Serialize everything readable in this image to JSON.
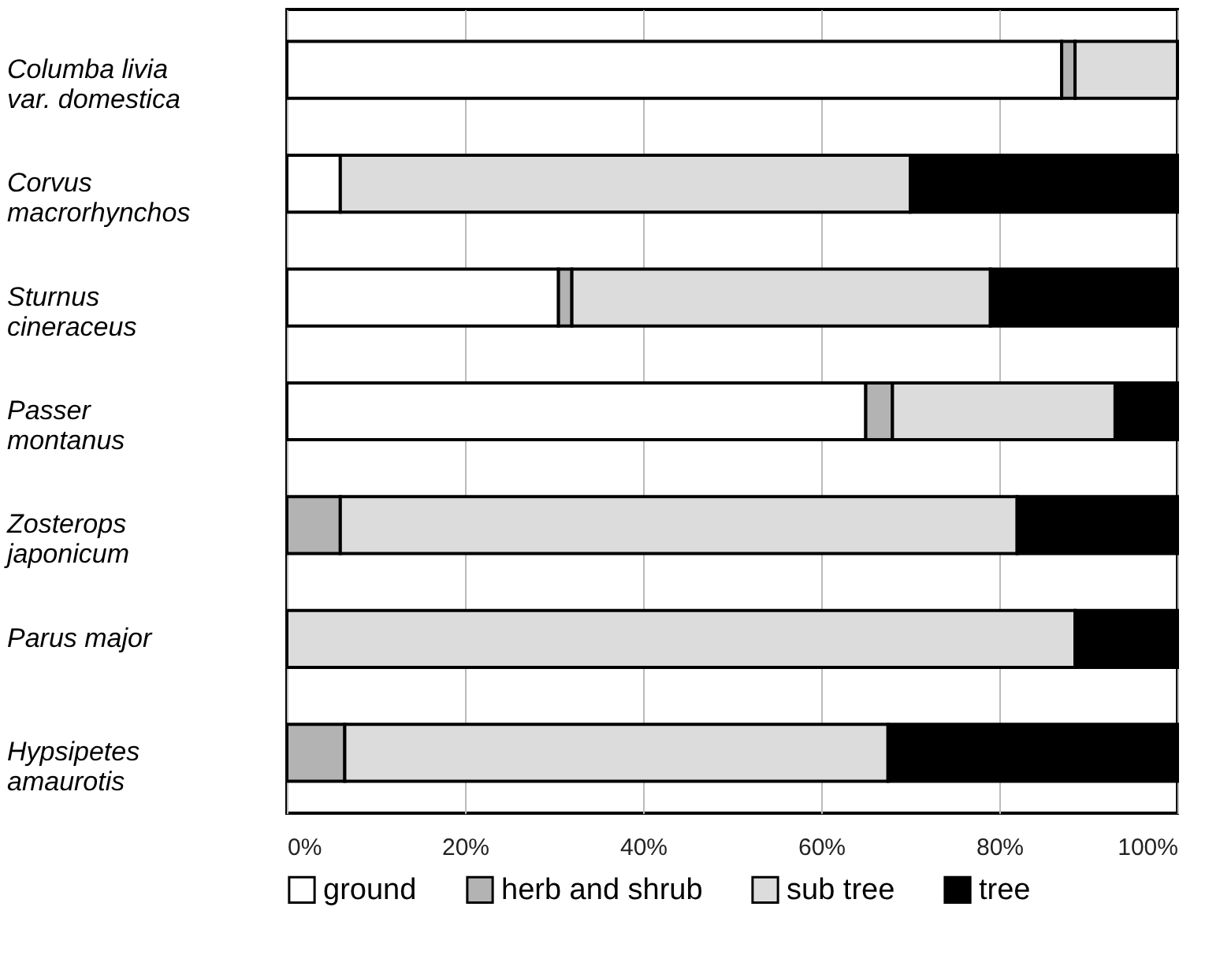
{
  "chart_data": {
    "type": "bar",
    "orientation": "horizontal",
    "stacked": true,
    "categories": [
      "Columba livia\nvar. domestica",
      "Corvus\nmacrorhynchos",
      "Sturnus\ncineraceus",
      "Passer\nmontanus",
      "Zosterops\njaponicum",
      "Parus major",
      "Hypsipetes\namaurotis"
    ],
    "series": [
      {
        "name": "ground",
        "color": "#ffffff",
        "values": [
          87,
          6,
          30.5,
          65,
          0,
          0,
          0
        ]
      },
      {
        "name": "herb and shrub",
        "color": "#b3b3b3",
        "values": [
          1.5,
          0,
          1.5,
          3,
          6,
          0,
          6.5
        ]
      },
      {
        "name": "sub tree",
        "color": "#dcdcdc",
        "values": [
          11.5,
          64,
          47,
          25,
          76,
          88.5,
          61
        ]
      },
      {
        "name": "tree",
        "color": "#000000",
        "values": [
          0,
          30,
          21,
          7,
          18,
          11.5,
          32.5
        ]
      }
    ],
    "xlim": [
      0,
      100
    ],
    "xticks": [
      {
        "value": 0,
        "label": "0%"
      },
      {
        "value": 20,
        "label": "20%"
      },
      {
        "value": 40,
        "label": "40%"
      },
      {
        "value": 60,
        "label": "60%"
      },
      {
        "value": 80,
        "label": "80%"
      },
      {
        "value": 100,
        "label": "100%"
      }
    ],
    "grid": "x",
    "legend": "bottom"
  }
}
